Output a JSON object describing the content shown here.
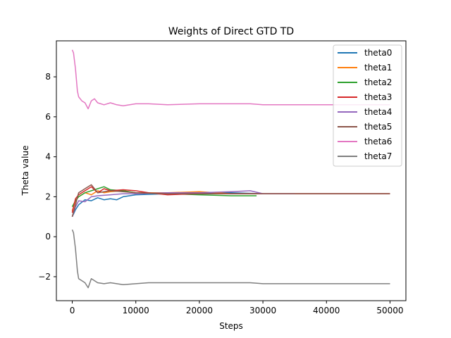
{
  "chart_data": {
    "type": "line",
    "title": "Weights of Direct GTD TD",
    "xlabel": "Steps",
    "ylabel": "Theta value",
    "xlim": [
      -2500,
      52500
    ],
    "ylim": [
      -3.2,
      9.8
    ],
    "xticks": [
      0,
      10000,
      20000,
      30000,
      40000,
      50000
    ],
    "xtick_labels": [
      "0",
      "10000",
      "20000",
      "30000",
      "40000",
      "50000"
    ],
    "yticks": [
      -2,
      0,
      2,
      4,
      6,
      8
    ],
    "ytick_labels": [
      "−2",
      "0",
      "2",
      "4",
      "6",
      "8"
    ],
    "grid": false,
    "legend_position": "top-right",
    "series": [
      {
        "name": "theta0",
        "color": "#1f77b4",
        "x": [
          0,
          500,
          1000,
          2000,
          3000,
          4000,
          5000,
          6000,
          7000,
          8000,
          10000,
          15000,
          20000,
          25000,
          30000,
          40000,
          50000
        ],
        "y": [
          1.0,
          1.35,
          1.6,
          1.85,
          1.8,
          1.95,
          1.85,
          1.9,
          1.85,
          2.0,
          2.1,
          2.15,
          2.2,
          2.2,
          2.15,
          2.15,
          2.15
        ]
      },
      {
        "name": "theta1",
        "color": "#ff7f0e",
        "x": [
          0,
          500,
          1000,
          2000,
          3000,
          4000,
          5000,
          6000,
          8000,
          10000,
          15000,
          20000,
          25000,
          30000,
          40000,
          50000
        ],
        "y": [
          1.3,
          1.8,
          2.0,
          2.2,
          2.1,
          2.3,
          2.2,
          2.25,
          2.3,
          2.2,
          2.2,
          2.25,
          2.15,
          2.15,
          2.15,
          2.15
        ]
      },
      {
        "name": "theta2",
        "color": "#2ca02c",
        "x": [
          0,
          500,
          1000,
          2000,
          3000,
          4000,
          5000,
          6000,
          8000,
          10000,
          15000,
          20000,
          25000,
          29000
        ],
        "y": [
          1.5,
          1.8,
          2.0,
          2.2,
          2.3,
          2.4,
          2.5,
          2.35,
          2.3,
          2.2,
          2.15,
          2.1,
          2.05,
          2.05
        ]
      },
      {
        "name": "theta3",
        "color": "#d62728",
        "x": [
          0,
          500,
          1000,
          2000,
          3000,
          4000,
          5000,
          6000,
          8000,
          10000,
          12000,
          15000,
          20000,
          30000,
          40000,
          50000
        ],
        "y": [
          1.2,
          1.9,
          2.1,
          2.3,
          2.5,
          2.2,
          2.4,
          2.3,
          2.35,
          2.3,
          2.2,
          2.1,
          2.15,
          2.15,
          2.15,
          2.15
        ]
      },
      {
        "name": "theta4",
        "color": "#9467bd",
        "x": [
          0,
          500,
          1000,
          2000,
          3000,
          4000,
          6000,
          8000,
          10000,
          15000,
          20000,
          25000,
          28000,
          30000,
          35000
        ],
        "y": [
          1.0,
          1.5,
          1.8,
          1.75,
          2.0,
          2.05,
          2.1,
          2.15,
          2.15,
          2.2,
          2.2,
          2.25,
          2.3,
          2.15,
          2.15
        ]
      },
      {
        "name": "theta5",
        "color": "#8c564b",
        "x": [
          0,
          500,
          1000,
          2000,
          3000,
          4000,
          6000,
          8000,
          10000,
          15000,
          20000,
          25000,
          30000,
          40000,
          50000
        ],
        "y": [
          1.0,
          1.6,
          2.2,
          2.4,
          2.6,
          2.2,
          2.3,
          2.25,
          2.2,
          2.15,
          2.15,
          2.15,
          2.15,
          2.15,
          2.15
        ]
      },
      {
        "name": "theta6",
        "color": "#e377c2",
        "x": [
          0,
          200,
          500,
          800,
          1000,
          1500,
          2000,
          2500,
          3000,
          3500,
          4000,
          5000,
          6000,
          7000,
          8000,
          10000,
          12000,
          15000,
          20000,
          25000,
          28000,
          30000,
          40000,
          50000
        ],
        "y": [
          9.35,
          9.2,
          8.4,
          7.3,
          7.0,
          6.8,
          6.7,
          6.4,
          6.8,
          6.9,
          6.7,
          6.6,
          6.7,
          6.6,
          6.55,
          6.65,
          6.65,
          6.6,
          6.65,
          6.65,
          6.65,
          6.6,
          6.6,
          6.6
        ]
      },
      {
        "name": "theta7",
        "color": "#7f7f7f",
        "x": [
          0,
          200,
          500,
          800,
          1000,
          1500,
          2000,
          2500,
          3000,
          3500,
          4000,
          5000,
          6000,
          7000,
          8000,
          10000,
          12000,
          15000,
          20000,
          25000,
          28000,
          30000,
          40000,
          50000
        ],
        "y": [
          0.35,
          0.2,
          -0.6,
          -1.7,
          -2.1,
          -2.2,
          -2.3,
          -2.55,
          -2.1,
          -2.2,
          -2.3,
          -2.35,
          -2.3,
          -2.35,
          -2.4,
          -2.35,
          -2.3,
          -2.3,
          -2.3,
          -2.3,
          -2.3,
          -2.35,
          -2.35,
          -2.35
        ]
      }
    ]
  }
}
